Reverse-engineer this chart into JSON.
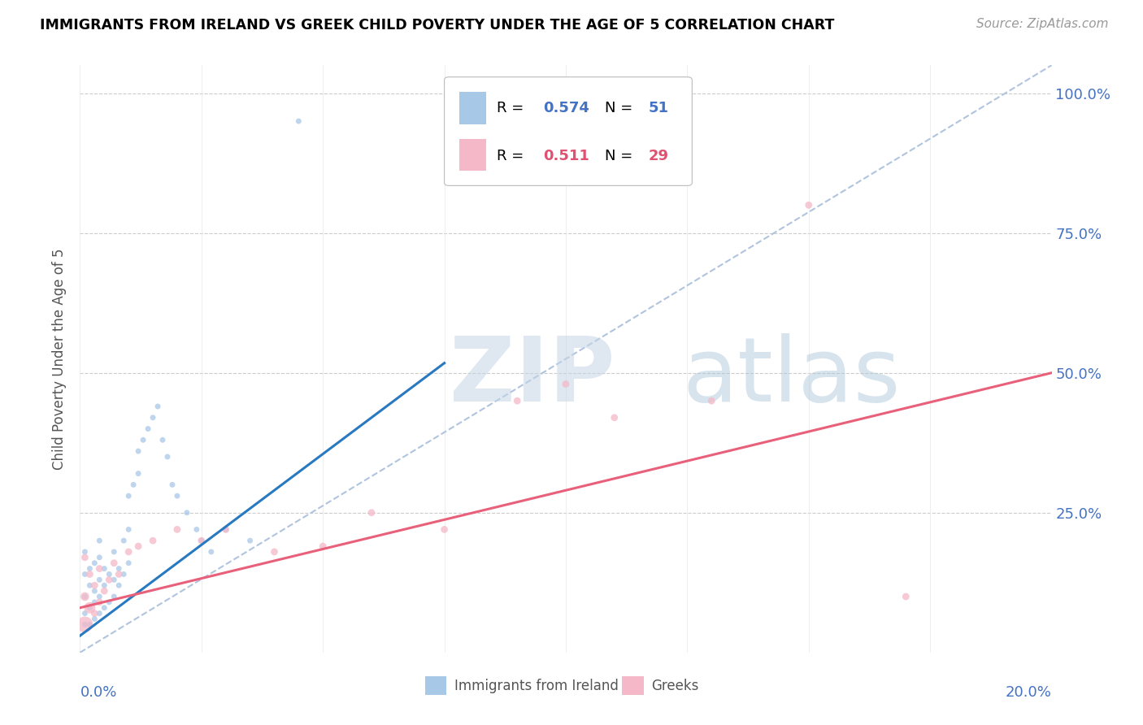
{
  "title": "IMMIGRANTS FROM IRELAND VS GREEK CHILD POVERTY UNDER THE AGE OF 5 CORRELATION CHART",
  "source": "Source: ZipAtlas.com",
  "ylabel": "Child Poverty Under the Age of 5",
  "legend_R1_val": "0.574",
  "legend_N1_val": "51",
  "legend_R2_val": "0.511",
  "legend_N2_val": "29",
  "color_blue": "#a8c8e8",
  "color_pink": "#f4b8c8",
  "color_blue_line": "#2979c0",
  "color_pink_line": "#e8607a",
  "color_diag": "#b0c4de",
  "xmin": 0.0,
  "xmax": 0.2,
  "ymin": 0.0,
  "ymax": 1.05,
  "blue_scatter_x": [
    0.001,
    0.001,
    0.001,
    0.001,
    0.001,
    0.002,
    0.002,
    0.002,
    0.002,
    0.003,
    0.003,
    0.003,
    0.003,
    0.004,
    0.004,
    0.004,
    0.004,
    0.004,
    0.005,
    0.005,
    0.005,
    0.006,
    0.006,
    0.007,
    0.007,
    0.007,
    0.008,
    0.008,
    0.009,
    0.009,
    0.01,
    0.01,
    0.01,
    0.011,
    0.012,
    0.012,
    0.013,
    0.014,
    0.015,
    0.016,
    0.017,
    0.018,
    0.019,
    0.02,
    0.022,
    0.024,
    0.025,
    0.027,
    0.03,
    0.035,
    0.045
  ],
  "blue_scatter_y": [
    0.05,
    0.07,
    0.1,
    0.14,
    0.18,
    0.05,
    0.08,
    0.12,
    0.15,
    0.06,
    0.09,
    0.11,
    0.16,
    0.07,
    0.1,
    0.13,
    0.17,
    0.2,
    0.08,
    0.12,
    0.15,
    0.09,
    0.14,
    0.1,
    0.13,
    0.18,
    0.12,
    0.15,
    0.14,
    0.2,
    0.16,
    0.22,
    0.28,
    0.3,
    0.32,
    0.36,
    0.38,
    0.4,
    0.42,
    0.44,
    0.38,
    0.35,
    0.3,
    0.28,
    0.25,
    0.22,
    0.2,
    0.18,
    0.22,
    0.2,
    0.95
  ],
  "blue_scatter_size": [
    25,
    25,
    25,
    25,
    25,
    25,
    25,
    25,
    25,
    25,
    25,
    25,
    25,
    25,
    25,
    25,
    25,
    25,
    25,
    25,
    25,
    25,
    25,
    25,
    25,
    25,
    25,
    25,
    25,
    25,
    25,
    25,
    25,
    25,
    25,
    25,
    25,
    25,
    25,
    25,
    25,
    25,
    25,
    25,
    25,
    25,
    25,
    25,
    25,
    25,
    25
  ],
  "pink_scatter_x": [
    0.001,
    0.001,
    0.001,
    0.002,
    0.002,
    0.003,
    0.003,
    0.004,
    0.004,
    0.005,
    0.006,
    0.007,
    0.008,
    0.01,
    0.012,
    0.015,
    0.02,
    0.025,
    0.03,
    0.04,
    0.05,
    0.06,
    0.075,
    0.09,
    0.1,
    0.11,
    0.13,
    0.15,
    0.17
  ],
  "pink_scatter_y": [
    0.05,
    0.1,
    0.17,
    0.08,
    0.14,
    0.07,
    0.12,
    0.09,
    0.15,
    0.11,
    0.13,
    0.16,
    0.14,
    0.18,
    0.19,
    0.2,
    0.22,
    0.2,
    0.22,
    0.18,
    0.19,
    0.25,
    0.22,
    0.45,
    0.48,
    0.42,
    0.45,
    0.8,
    0.1
  ],
  "pink_scatter_size": [
    200,
    60,
    40,
    100,
    40,
    40,
    40,
    40,
    40,
    40,
    40,
    40,
    40,
    40,
    40,
    40,
    40,
    40,
    40,
    40,
    40,
    40,
    40,
    40,
    40,
    40,
    40,
    40,
    40
  ],
  "blue_line_x": [
    0.0,
    0.075
  ],
  "pink_line_x": [
    0.0,
    0.2
  ],
  "blue_line_intercept": 0.03,
  "blue_line_slope": 6.5,
  "pink_line_intercept": 0.08,
  "pink_line_slope": 2.1
}
